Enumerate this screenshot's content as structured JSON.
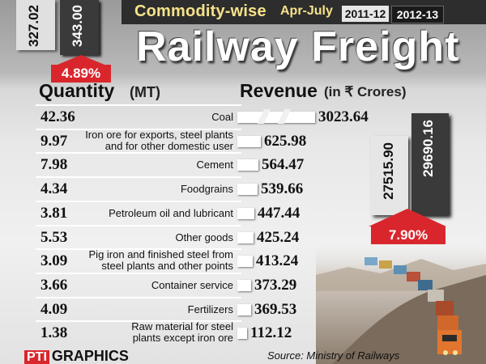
{
  "header": {
    "commodity_title": "Commodity-wise",
    "period": "Apr-July",
    "years": [
      "2011-12",
      "2012-13"
    ],
    "main_title": "Railway Freight"
  },
  "quantity_total": {
    "values": [
      "327.02",
      "343.00"
    ],
    "change": "4.89%"
  },
  "revenue_total": {
    "values": [
      "27515.90",
      "29690.16"
    ],
    "change": "7.90%"
  },
  "table": {
    "qty_header": "Quantity",
    "qty_unit": "(MT)",
    "rev_header": "Revenue",
    "rev_unit": "(in ₹ Crores)"
  },
  "source": "Source: Ministry of Railways",
  "logo": {
    "mark": "PTI",
    "text": "GRAPHICS"
  },
  "colors": {
    "accent_red": "#d9262c",
    "header_dark": "#2d2d2d",
    "title_yellow": "#f6e38a"
  },
  "chart_data": {
    "type": "bar",
    "title": "Railway Freight",
    "subtitle": "Commodity-wise Apr-July",
    "categories": [
      [
        "Coal"
      ],
      [
        "Iron ore for exports, steel plants",
        "and for other domestic user"
      ],
      [
        "Cement"
      ],
      [
        "Foodgrains"
      ],
      [
        "Petroleum oil and lubricant"
      ],
      [
        "Other goods"
      ],
      [
        "Pig iron and finished steel from",
        "steel plants and other points"
      ],
      [
        "Container service"
      ],
      [
        "Fertilizers"
      ],
      [
        "Raw material for steel",
        "plants except iron ore"
      ]
    ],
    "quantity_mt": [
      "42.36",
      "9.97",
      "7.98",
      "4.34",
      "3.81",
      "5.53",
      "3.09",
      "3.66",
      "4.09",
      "1.38"
    ],
    "revenue_crores": [
      "3023.64",
      "625.98",
      "564.47",
      "539.66",
      "447.44",
      "425.24",
      "413.24",
      "373.29",
      "369.53",
      "112.12"
    ],
    "totals": {
      "categories": [
        "2011-12",
        "2012-13"
      ],
      "quantity_mt": [
        327.02,
        343.0
      ],
      "revenue_crores": [
        27515.9,
        29690.16
      ],
      "quantity_change_pct": 4.89,
      "revenue_change_pct": 7.9
    }
  }
}
